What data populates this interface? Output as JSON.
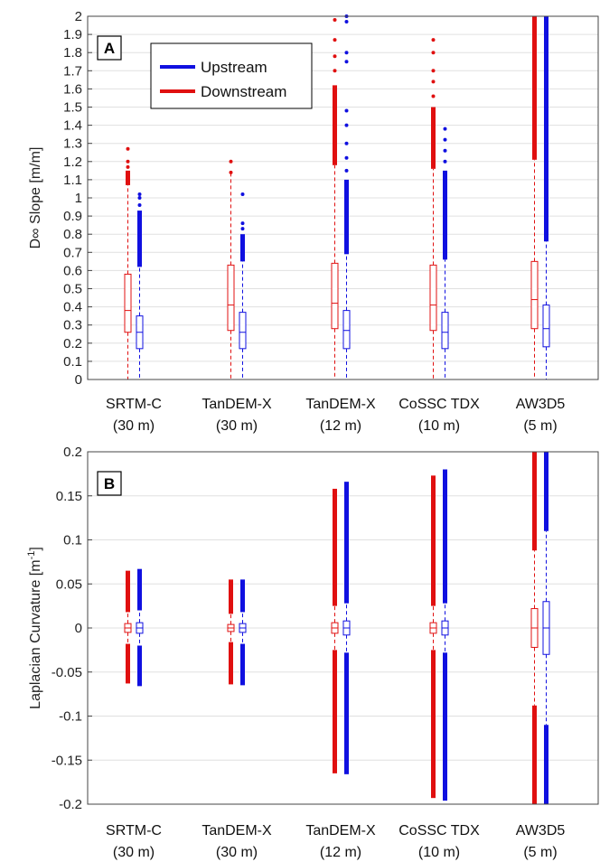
{
  "colors": {
    "upstream": "#1010e0",
    "downstream": "#e01010",
    "grid": "#e0e0e0",
    "axis": "#444444"
  },
  "chart_data": [
    {
      "type": "box",
      "panel_label": "A",
      "ylabel": "D∞ Slope [m/m]",
      "ylim": [
        0,
        2
      ],
      "yticks": [
        "0",
        "0.1",
        "0.2",
        "0.3",
        "0.4",
        "0.5",
        "0.6",
        "0.7",
        "0.8",
        "0.9",
        "1",
        "1.1",
        "1.2",
        "1.3",
        "1.4",
        "1.5",
        "1.6",
        "1.7",
        "1.8",
        "1.9",
        "2"
      ],
      "grid": true,
      "legend": {
        "position": "top-left",
        "entries": [
          "Upstream",
          "Downstream"
        ]
      },
      "categories": [
        {
          "name": "SRTM-C",
          "res": "(30 m)"
        },
        {
          "name": "TanDEM-X",
          "res": "(30 m)"
        },
        {
          "name": "TanDEM-X",
          "res": "(12 m)"
        },
        {
          "name": "CoSSC TDX",
          "res": "(10 m)"
        },
        {
          "name": "AW3D5",
          "res": "(5 m)"
        }
      ],
      "series": [
        {
          "name": "Downstream",
          "boxes": [
            {
              "whisker_low": 0,
              "q1": 0.26,
              "median": 0.38,
              "q3": 0.58,
              "whisker_high": 1.07,
              "outliers_dense": [
                1.07,
                1.15
              ],
              "outliers_sparse": [
                1.17,
                1.2,
                1.27
              ]
            },
            {
              "whisker_low": 0,
              "q1": 0.27,
              "median": 0.41,
              "q3": 0.63,
              "whisker_high": 1.14,
              "outliers_dense": [],
              "outliers_sparse": [
                1.14,
                1.2
              ]
            },
            {
              "whisker_low": 0,
              "q1": 0.28,
              "median": 0.42,
              "q3": 0.64,
              "whisker_high": 1.18,
              "outliers_dense": [
                1.18,
                1.62
              ],
              "outliers_sparse": [
                1.7,
                1.78,
                1.87,
                1.98
              ]
            },
            {
              "whisker_low": 0,
              "q1": 0.27,
              "median": 0.41,
              "q3": 0.63,
              "whisker_high": 1.16,
              "outliers_dense": [
                1.16,
                1.5
              ],
              "outliers_sparse": [
                1.56,
                1.64,
                1.7,
                1.8,
                1.87
              ]
            },
            {
              "whisker_low": 0,
              "q1": 0.28,
              "median": 0.44,
              "q3": 0.65,
              "whisker_high": 1.21,
              "outliers_dense": [
                1.21,
                2.0
              ],
              "outliers_sparse": []
            }
          ]
        },
        {
          "name": "Upstream",
          "boxes": [
            {
              "whisker_low": 0,
              "q1": 0.17,
              "median": 0.26,
              "q3": 0.35,
              "whisker_high": 0.62,
              "outliers_dense": [
                0.62,
                0.93
              ],
              "outliers_sparse": [
                0.96,
                1.0,
                1.02
              ]
            },
            {
              "whisker_low": 0,
              "q1": 0.17,
              "median": 0.26,
              "q3": 0.37,
              "whisker_high": 0.65,
              "outliers_dense": [
                0.65,
                0.8
              ],
              "outliers_sparse": [
                0.83,
                0.86,
                1.02
              ]
            },
            {
              "whisker_low": 0,
              "q1": 0.17,
              "median": 0.27,
              "q3": 0.38,
              "whisker_high": 0.69,
              "outliers_dense": [
                0.69,
                1.1
              ],
              "outliers_sparse": [
                1.15,
                1.22,
                1.3,
                1.4,
                1.48,
                1.75,
                1.8,
                1.97,
                2.0
              ]
            },
            {
              "whisker_low": 0,
              "q1": 0.17,
              "median": 0.26,
              "q3": 0.37,
              "whisker_high": 0.66,
              "outliers_dense": [
                0.66,
                1.15
              ],
              "outliers_sparse": [
                1.2,
                1.26,
                1.32,
                1.38
              ]
            },
            {
              "whisker_low": 0,
              "q1": 0.18,
              "median": 0.28,
              "q3": 0.41,
              "whisker_high": 0.76,
              "outliers_dense": [
                0.76,
                2.0
              ],
              "outliers_sparse": []
            }
          ]
        }
      ]
    },
    {
      "type": "box",
      "panel_label": "B",
      "ylabel": "Laplacian Curvature [m",
      "ylabel_sup": "-1",
      "ylabel_end": "]",
      "ylim": [
        -0.2,
        0.2
      ],
      "yticks": [
        "-0.2",
        "-0.15",
        "-0.1",
        "-0.05",
        "0",
        "0.05",
        "0.1",
        "0.15",
        "0.2"
      ],
      "grid": true,
      "categories": [
        {
          "name": "SRTM-C",
          "res": "(30 m)"
        },
        {
          "name": "TanDEM-X",
          "res": "(30 m)"
        },
        {
          "name": "TanDEM-X",
          "res": "(12 m)"
        },
        {
          "name": "CoSSC TDX",
          "res": "(10 m)"
        },
        {
          "name": "AW3D5",
          "res": "(5 m)"
        }
      ],
      "series": [
        {
          "name": "Downstream",
          "boxes": [
            {
              "whisker_low": -0.018,
              "q1": -0.005,
              "median": 0,
              "q3": 0.005,
              "whisker_high": 0.018,
              "outliers_low": [
                -0.063,
                -0.018
              ],
              "outliers_high": [
                0.018,
                0.065
              ]
            },
            {
              "whisker_low": -0.016,
              "q1": -0.004,
              "median": 0,
              "q3": 0.004,
              "whisker_high": 0.016,
              "outliers_low": [
                -0.064,
                -0.016
              ],
              "outliers_high": [
                0.016,
                0.055
              ]
            },
            {
              "whisker_low": -0.025,
              "q1": -0.006,
              "median": 0,
              "q3": 0.006,
              "whisker_high": 0.025,
              "outliers_low": [
                -0.165,
                -0.025
              ],
              "outliers_high": [
                0.025,
                0.158
              ]
            },
            {
              "whisker_low": -0.025,
              "q1": -0.006,
              "median": 0,
              "q3": 0.006,
              "whisker_high": 0.025,
              "outliers_low": [
                -0.193,
                -0.025
              ],
              "outliers_high": [
                0.025,
                0.173
              ]
            },
            {
              "whisker_low": -0.088,
              "q1": -0.022,
              "median": 0,
              "q3": 0.022,
              "whisker_high": 0.088,
              "outliers_low": [
                -0.2,
                -0.088
              ],
              "outliers_high": [
                0.088,
                0.2
              ]
            }
          ]
        },
        {
          "name": "Upstream",
          "boxes": [
            {
              "whisker_low": -0.02,
              "q1": -0.006,
              "median": 0,
              "q3": 0.006,
              "whisker_high": 0.02,
              "outliers_low": [
                -0.066,
                -0.02
              ],
              "outliers_high": [
                0.02,
                0.067
              ]
            },
            {
              "whisker_low": -0.018,
              "q1": -0.005,
              "median": 0,
              "q3": 0.005,
              "whisker_high": 0.018,
              "outliers_low": [
                -0.065,
                -0.018
              ],
              "outliers_high": [
                0.018,
                0.055
              ]
            },
            {
              "whisker_low": -0.028,
              "q1": -0.008,
              "median": 0,
              "q3": 0.008,
              "whisker_high": 0.028,
              "outliers_low": [
                -0.166,
                -0.028
              ],
              "outliers_high": [
                0.028,
                0.166
              ]
            },
            {
              "whisker_low": -0.028,
              "q1": -0.008,
              "median": 0,
              "q3": 0.008,
              "whisker_high": 0.028,
              "outliers_low": [
                -0.196,
                -0.028
              ],
              "outliers_high": [
                0.028,
                0.18
              ]
            },
            {
              "whisker_low": -0.11,
              "q1": -0.03,
              "median": 0,
              "q3": 0.03,
              "whisker_high": 0.11,
              "outliers_low": [
                -0.2,
                -0.11
              ],
              "outliers_high": [
                0.11,
                0.2
              ]
            }
          ]
        }
      ]
    }
  ]
}
